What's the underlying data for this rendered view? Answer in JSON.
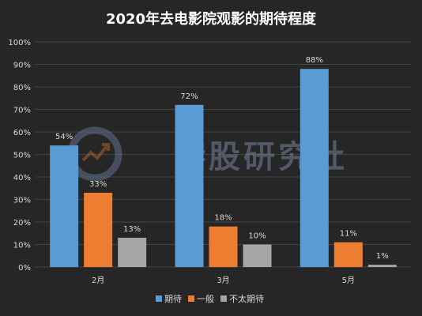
{
  "chart_data": {
    "type": "bar",
    "title": "2020年去电影院观影的期待程度",
    "categories": [
      "2月",
      "3月",
      "5月"
    ],
    "series": [
      {
        "name": "期待",
        "values": [
          54,
          72,
          88
        ],
        "color": "#5b9bd5"
      },
      {
        "name": "一般",
        "values": [
          33,
          18,
          11
        ],
        "color": "#ed7d31"
      },
      {
        "name": "不太期待",
        "values": [
          13,
          10,
          1
        ],
        "color": "#a5a5a5"
      }
    ],
    "ylim": [
      0,
      100
    ],
    "yticks": [
      "0%",
      "10%",
      "20%",
      "30%",
      "40%",
      "50%",
      "60%",
      "70%",
      "80%",
      "90%",
      "100%"
    ],
    "value_suffix": "%",
    "grid": true,
    "legend_position": "bottom"
  },
  "watermark": {
    "text": "港股研究社"
  },
  "colors": {
    "background": "#262626",
    "grid": "#444444",
    "text": "#d9d9d9",
    "title": "#ffffff"
  }
}
